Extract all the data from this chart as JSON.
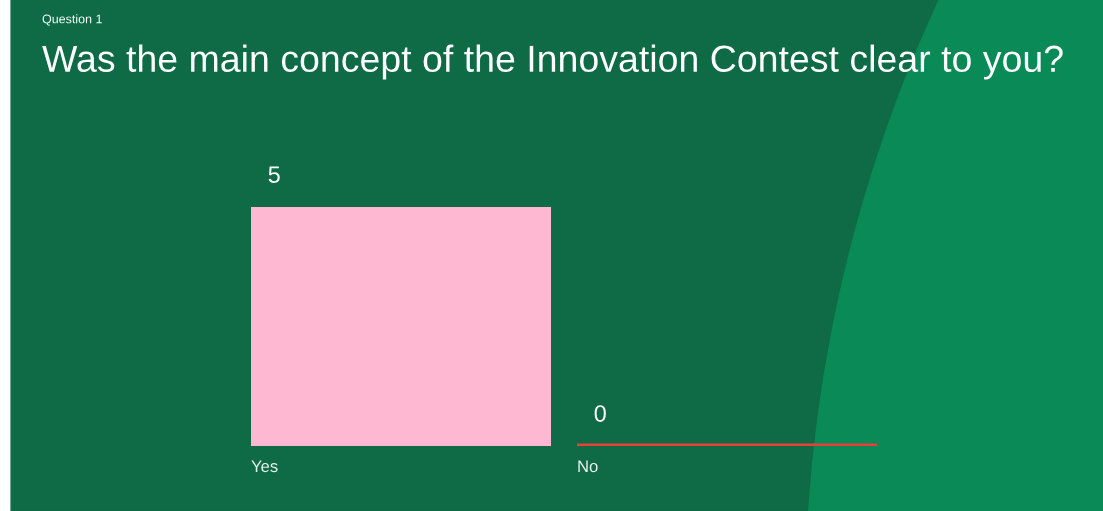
{
  "chart_data": {
    "type": "bar",
    "title": "Was the main concept of the Innovation Contest clear to you?",
    "subtitle": "Question 1",
    "categories": [
      "Yes",
      "No"
    ],
    "values": [
      5,
      0
    ],
    "colors": [
      "#ffb8d1",
      "#e8413b"
    ],
    "data_labels": true,
    "grid": false,
    "legend": false,
    "tick_labels": "x"
  }
}
